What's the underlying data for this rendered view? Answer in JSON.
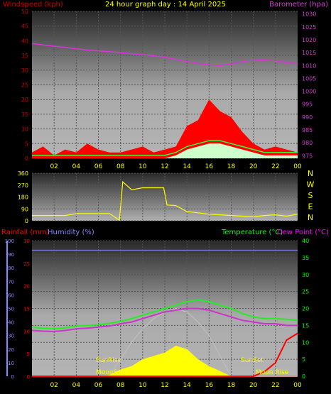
{
  "colors": {
    "background": "#000000",
    "wind_label": "#cc0000",
    "title": "#ffff00",
    "baro_label": "#cc44cc",
    "baro_line": "#dd33dd",
    "wind_fill": "#ff0000",
    "gust_line": "#33ff33",
    "avg_fill": "#ccffcc",
    "dir_line": "#ffff00",
    "axis_text": "#ffff00",
    "rain_axis": "#ff0000",
    "hum_axis": "#8888ff",
    "temp_axis": "#00ff00",
    "dew_label": "#ff00ff",
    "temp_line": "#22ee22",
    "dew_line": "#cc33cc",
    "solar_fill": "#ffff00",
    "sun_curve": "#bbbbbb",
    "hum_line": "#8888ff",
    "rain_line": "#ff0000"
  },
  "chart_data": [
    {
      "type": "area",
      "title": "24 hour graph day : 14 April 2025",
      "left_label": "Windspeed (kph)",
      "right_label": "Barometer (hpa)",
      "x_ticks": [
        "02",
        "04",
        "06",
        "08",
        "10",
        "12",
        "14",
        "16",
        "18",
        "20",
        "22",
        "00"
      ],
      "y_ticks": [
        "0",
        "5",
        "10",
        "15",
        "20",
        "25",
        "30",
        "35",
        "40",
        "45",
        "50"
      ],
      "ylim": [
        0,
        50
      ],
      "y2_ticks": [
        "975",
        "980",
        "985",
        "990",
        "995",
        "1000",
        "1005",
        "1010",
        "1015",
        "1020",
        "1025",
        "1030"
      ],
      "y2lim": [
        974,
        1031
      ],
      "x_hours": [
        0,
        1,
        2,
        3,
        4,
        5,
        6,
        7,
        8,
        9,
        10,
        11,
        12,
        13,
        14,
        15,
        16,
        17,
        18,
        19,
        20,
        21,
        22,
        23,
        24
      ],
      "series": [
        {
          "name": "Barometer (hpa)",
          "axis": "right",
          "values": [
            1018.5,
            1018.0,
            1017.5,
            1017.0,
            1016.5,
            1016.0,
            1015.7,
            1015.4,
            1015.0,
            1014.6,
            1014.2,
            1013.8,
            1013.2,
            1012.4,
            1011.5,
            1010.8,
            1010.3,
            1010.0,
            1010.6,
            1011.5,
            1012.0,
            1012.1,
            1011.8,
            1011.1,
            1010.7
          ]
        },
        {
          "name": "Wind gust",
          "axis": "left",
          "values": [
            2,
            4,
            1,
            3,
            2,
            5,
            3,
            2,
            2,
            3,
            4,
            2,
            3,
            4,
            11,
            13,
            20,
            16,
            14,
            9,
            5,
            3,
            4,
            3,
            2
          ]
        },
        {
          "name": "Wind speed",
          "axis": "left",
          "values": [
            0,
            0,
            0,
            0,
            0,
            0,
            0,
            0,
            0,
            0,
            0,
            0,
            0,
            1,
            3,
            4,
            5,
            5,
            4,
            3,
            2,
            1,
            1,
            1,
            1
          ]
        }
      ]
    },
    {
      "type": "line",
      "y_ticks": [
        "0",
        "90",
        "180",
        "270",
        "360"
      ],
      "ylim": [
        0,
        360
      ],
      "compass": [
        "N",
        "W",
        "S",
        "E",
        "N"
      ],
      "x_hours": [
        0,
        1,
        2,
        3,
        4,
        5,
        6,
        7,
        7.9,
        8.2,
        9,
        10,
        11,
        11.9,
        12.2,
        13,
        14,
        15,
        16,
        17,
        18,
        19,
        20,
        21,
        22,
        23,
        24
      ],
      "series": [
        {
          "name": "Wind direction",
          "values": [
            40,
            40,
            40,
            40,
            55,
            55,
            55,
            55,
            5,
            295,
            235,
            250,
            250,
            250,
            120,
            115,
            70,
            60,
            50,
            45,
            40,
            35,
            30,
            40,
            45,
            35,
            50
          ]
        }
      ]
    },
    {
      "type": "area",
      "left_labels": [
        "Rainfall (mm)",
        "Humidity (%)"
      ],
      "right_labels": [
        "Temperature (°C)",
        "Dew Point (°C)"
      ],
      "rain_ticks": [
        "0",
        "5",
        "10",
        "15",
        "20",
        "25",
        "30"
      ],
      "rain_lim": [
        0,
        30
      ],
      "hum_ticks": [
        "0",
        "10",
        "20",
        "30",
        "40",
        "50",
        "60",
        "70",
        "80",
        "90",
        "100"
      ],
      "hum_lim": [
        0,
        100
      ],
      "temp_ticks": [
        "0",
        "5",
        "10",
        "15",
        "20",
        "25",
        "30",
        "35",
        "40"
      ],
      "temp_lim": [
        0,
        40
      ],
      "x_ticks": [
        "02",
        "04",
        "06",
        "08",
        "10",
        "12",
        "14",
        "16",
        "18",
        "20",
        "22",
        "00"
      ],
      "annotations": [
        "SunRise",
        "SunSet",
        "MoonSet",
        "Moon Rise"
      ],
      "x_hours": [
        0,
        1,
        2,
        3,
        4,
        5,
        6,
        7,
        8,
        9,
        10,
        11,
        12,
        13,
        14,
        15,
        16,
        17,
        18,
        19,
        20,
        21,
        22,
        23,
        24
      ],
      "series": [
        {
          "name": "Humidity (%)",
          "values": [
            93,
            93,
            93,
            93,
            93,
            93,
            93,
            93,
            93,
            93,
            93,
            93,
            93,
            93,
            93,
            93,
            93,
            93,
            93,
            93,
            93,
            93,
            93,
            93,
            93
          ]
        },
        {
          "name": "Temperature (°C)",
          "values": [
            14.5,
            14.2,
            14.0,
            14.3,
            14.8,
            15.0,
            15.2,
            15.6,
            16.2,
            17.0,
            18.0,
            19.0,
            20.0,
            21.0,
            22.0,
            22.5,
            22.0,
            21.0,
            20.0,
            18.5,
            17.5,
            17.0,
            17.0,
            16.8,
            16.5
          ]
        },
        {
          "name": "Dew Point (°C)",
          "values": [
            13.5,
            13.3,
            13.2,
            13.5,
            14.0,
            14.2,
            14.5,
            14.8,
            15.5,
            16.0,
            17.0,
            18.0,
            19.0,
            19.5,
            20.0,
            20.0,
            19.5,
            18.5,
            17.5,
            16.5,
            16.0,
            15.5,
            15.5,
            15.0,
            15.0
          ]
        },
        {
          "name": "Solar",
          "values": [
            0,
            0,
            0,
            0,
            0,
            0,
            0,
            0.5,
            2,
            3,
            5,
            6,
            7,
            9,
            8,
            5,
            3,
            1.5,
            0,
            0,
            0,
            0,
            0,
            0,
            0
          ]
        },
        {
          "name": "Sun elevation",
          "values": [
            0,
            0,
            0,
            0,
            0,
            0,
            0,
            0.5,
            5,
            10,
            14,
            17,
            19,
            20,
            19,
            16,
            12,
            6,
            0,
            0,
            0,
            0,
            0,
            0,
            0
          ]
        },
        {
          "name": "Rainfall (mm)",
          "values": [
            0,
            0,
            0,
            0,
            0,
            0,
            0,
            0,
            0,
            0,
            0,
            0,
            0,
            0,
            0,
            0,
            0,
            0,
            0,
            0,
            0,
            1,
            3,
            8,
            9.5
          ]
        }
      ]
    }
  ]
}
